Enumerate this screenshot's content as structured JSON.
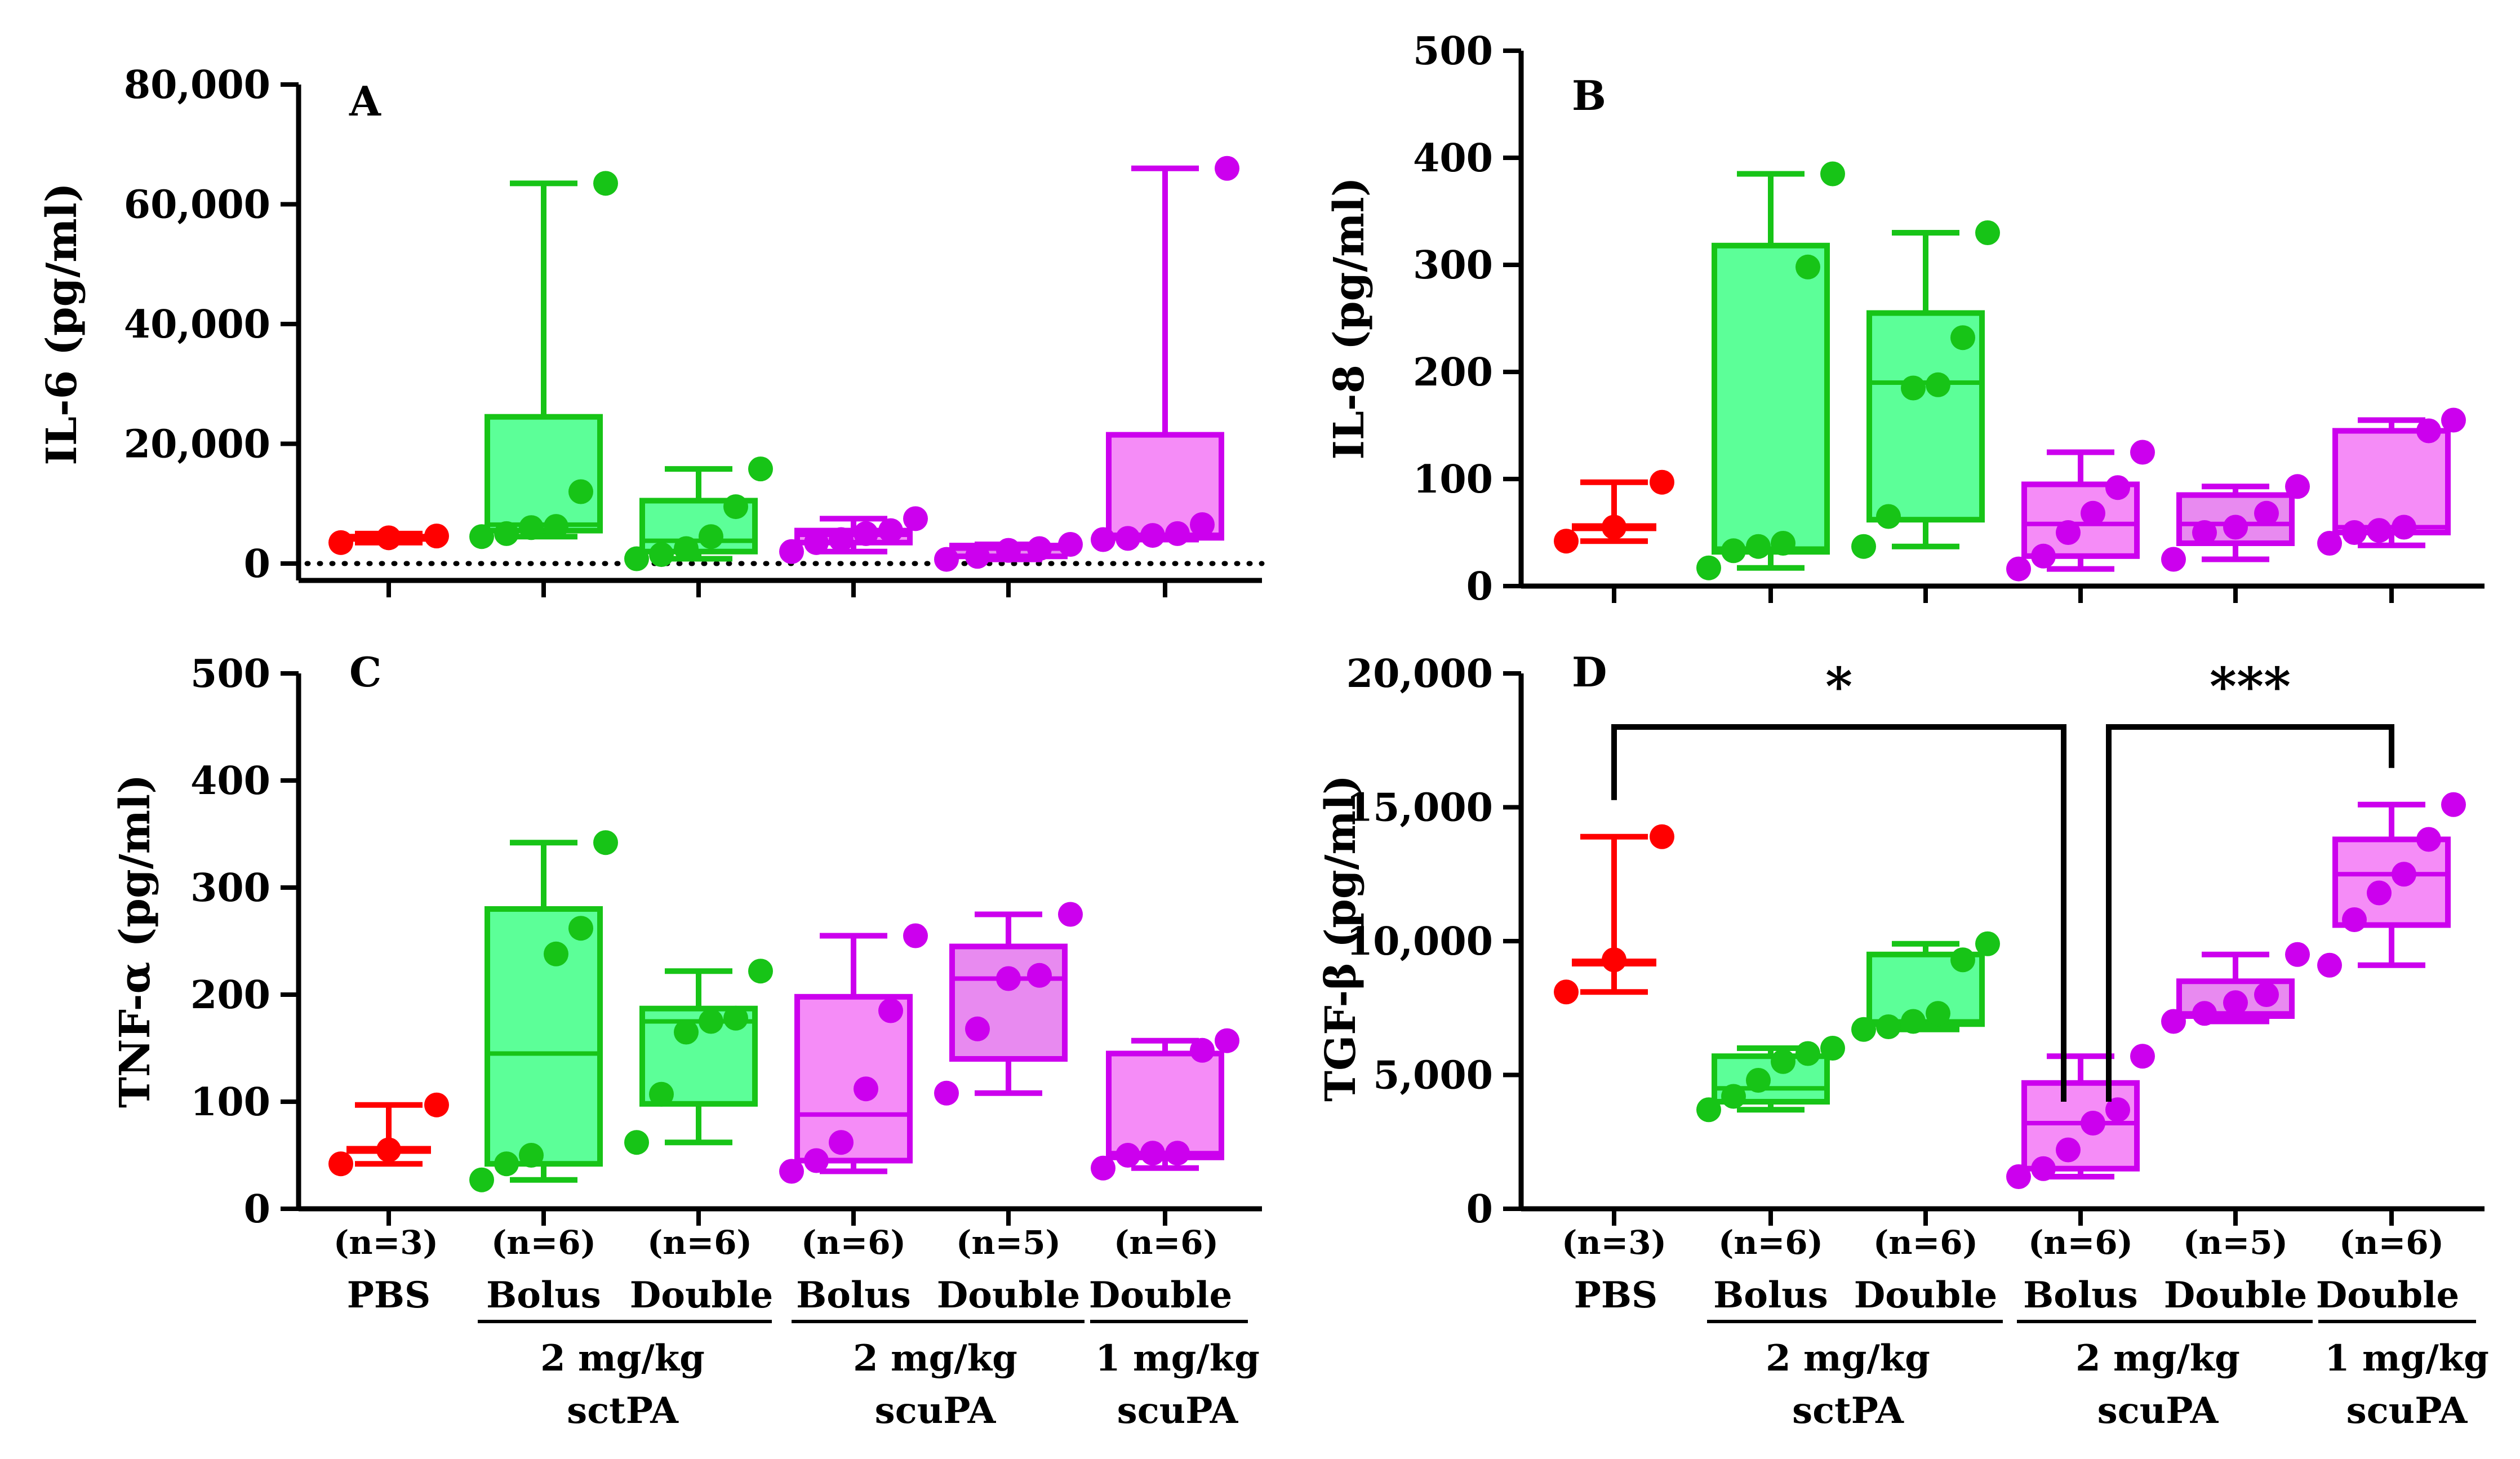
{
  "colors": {
    "pbs": "#ff0000",
    "sctpa_stroke": "#17c417",
    "sctpa_fill": "#5cff98",
    "scupa_stroke": "#cc00ee",
    "scupa_fill": "#f58cf7",
    "scupa_fill_dark": "#e88af0"
  },
  "groups": [
    {
      "n": "(n=3)",
      "label": "PBS"
    },
    {
      "n": "(n=6)",
      "label": "Bolus"
    },
    {
      "n": "(n=6)",
      "label": "Double"
    },
    {
      "n": "(n=6)",
      "label": "Bolus"
    },
    {
      "n": "(n=5)",
      "label": "Double"
    },
    {
      "n": "(n=6)",
      "label": "Double"
    }
  ],
  "dose_groups": [
    {
      "line1": "2 mg/kg",
      "line2": "sctPA"
    },
    {
      "line1": "2 mg/kg",
      "line2": "scuPA"
    },
    {
      "line1": "1 mg/kg",
      "line2": "scuPA"
    }
  ],
  "chart_data": [
    {
      "type": "box",
      "panel": "A",
      "ylabel": "IL-6 (pg/ml)",
      "ylim": [
        0,
        80000
      ],
      "yticks": [
        "0",
        "20,000",
        "40,000",
        "60,000",
        "80,000"
      ],
      "reference_line": 0,
      "series": [
        {
          "name": "PBS",
          "box": [
            3500,
            4300,
            4300,
            4300,
            5000
          ],
          "points": [
            3500,
            4300,
            4600
          ]
        },
        {
          "name": "2 mg/kg sctPA Bolus",
          "box": [
            4500,
            5500,
            6500,
            24500,
            63500
          ],
          "points": [
            4500,
            5000,
            6000,
            6200,
            12000,
            63500
          ]
        },
        {
          "name": "2 mg/kg sctPA Double",
          "box": [
            800,
            2000,
            3800,
            10500,
            15800
          ],
          "points": [
            800,
            1500,
            2500,
            4500,
            9500,
            15800
          ]
        },
        {
          "name": "2 mg/kg scuPA Bolus",
          "box": [
            2000,
            3500,
            4800,
            5500,
            7500
          ],
          "points": [
            2000,
            3500,
            4000,
            5000,
            5500,
            7500
          ]
        },
        {
          "name": "2 mg/kg scuPA Double",
          "box": [
            700,
            1200,
            2500,
            3000,
            3200
          ],
          "points": [
            700,
            1200,
            2200,
            2500,
            3200
          ]
        },
        {
          "name": "1 mg/kg scuPA Double",
          "box": [
            4000,
            4300,
            4800,
            21500,
            66000
          ],
          "points": [
            4000,
            4200,
            4700,
            5000,
            6500,
            66000
          ]
        }
      ]
    },
    {
      "type": "box",
      "panel": "B",
      "ylabel": "IL-8 (pg/ml)",
      "ylim": [
        0,
        500
      ],
      "yticks": [
        "0",
        "100",
        "200",
        "300",
        "400",
        "500"
      ],
      "series": [
        {
          "name": "PBS",
          "box": [
            42,
            55,
            55,
            55,
            97
          ],
          "points": [
            42,
            55,
            97
          ]
        },
        {
          "name": "2 mg/kg sctPA Bolus",
          "box": [
            17,
            32,
            35,
            318,
            385
          ],
          "points": [
            17,
            33,
            37,
            40,
            298,
            385
          ]
        },
        {
          "name": "2 mg/kg sctPA Double",
          "box": [
            37,
            62,
            190,
            255,
            330
          ],
          "points": [
            37,
            65,
            185,
            188,
            232,
            330
          ]
        },
        {
          "name": "2 mg/kg scuPA Bolus",
          "box": [
            16,
            28,
            58,
            95,
            125
          ],
          "points": [
            16,
            28,
            50,
            68,
            92,
            125
          ]
        },
        {
          "name": "2 mg/kg scuPA Double",
          "box": [
            25,
            40,
            58,
            85,
            93
          ],
          "points": [
            25,
            50,
            55,
            68,
            93
          ]
        },
        {
          "name": "1 mg/kg scuPA Double",
          "box": [
            38,
            50,
            55,
            145,
            155
          ],
          "points": [
            40,
            50,
            52,
            55,
            145,
            155
          ]
        }
      ]
    },
    {
      "type": "box",
      "panel": "C",
      "ylabel": "TNF-α  (pg/ml)",
      "ylim": [
        0,
        500
      ],
      "yticks": [
        "0",
        "100",
        "200",
        "300",
        "400",
        "500"
      ],
      "series": [
        {
          "name": "PBS",
          "box": [
            42,
            55,
            55,
            55,
            97
          ],
          "points": [
            42,
            55,
            97
          ]
        },
        {
          "name": "2 mg/kg sctPA Bolus",
          "box": [
            27,
            42,
            145,
            280,
            342
          ],
          "points": [
            27,
            42,
            50,
            238,
            262,
            342
          ]
        },
        {
          "name": "2 mg/kg sctPA Double",
          "box": [
            62,
            98,
            175,
            187,
            222
          ],
          "points": [
            62,
            107,
            165,
            175,
            178,
            222
          ]
        },
        {
          "name": "2 mg/kg scuPA Bolus",
          "box": [
            35,
            45,
            88,
            198,
            255
          ],
          "points": [
            35,
            45,
            62,
            112,
            185,
            255
          ]
        },
        {
          "name": "2 mg/kg scuPA Double",
          "box": [
            108,
            140,
            215,
            245,
            275
          ],
          "points": [
            108,
            168,
            215,
            218,
            275
          ]
        },
        {
          "name": "1 mg/kg scuPA Double",
          "box": [
            38,
            48,
            52,
            145,
            157
          ],
          "points": [
            38,
            50,
            52,
            52,
            148,
            157
          ]
        }
      ]
    },
    {
      "type": "box",
      "panel": "D",
      "ylabel": "TGF-β (pg/ml)",
      "ylim": [
        0,
        20000
      ],
      "yticks": [
        "0",
        "5,000",
        "10,000",
        "15,000",
        "20,000"
      ],
      "significance": [
        {
          "from": 0,
          "to": 3,
          "label": "*"
        },
        {
          "from": 3,
          "to": 5,
          "label": "***"
        }
      ],
      "series": [
        {
          "name": "PBS",
          "box": [
            8100,
            9200,
            9200,
            9200,
            13900
          ],
          "points": [
            8100,
            9300,
            13900
          ]
        },
        {
          "name": "2 mg/kg sctPA Bolus",
          "box": [
            3700,
            4000,
            4500,
            5700,
            6000
          ],
          "points": [
            3700,
            4200,
            4800,
            5500,
            5800,
            6000
          ]
        },
        {
          "name": "2 mg/kg sctPA Double",
          "box": [
            6700,
            6900,
            7000,
            9500,
            9900
          ],
          "points": [
            6700,
            6800,
            7000,
            7300,
            9300,
            9900
          ]
        },
        {
          "name": "2 mg/kg scuPA Bolus",
          "box": [
            1200,
            1500,
            3200,
            4700,
            5700
          ],
          "points": [
            1200,
            1500,
            2200,
            3200,
            3700,
            5700
          ]
        },
        {
          "name": "2 mg/kg scuPA Double",
          "box": [
            7000,
            7200,
            7300,
            8500,
            9500
          ],
          "points": [
            7000,
            7300,
            7700,
            8000,
            9500
          ]
        },
        {
          "name": "1 mg/kg scuPA Double",
          "box": [
            9100,
            10600,
            12500,
            13800,
            15100
          ],
          "points": [
            9100,
            10800,
            11800,
            12500,
            13800,
            15100
          ]
        }
      ]
    }
  ]
}
